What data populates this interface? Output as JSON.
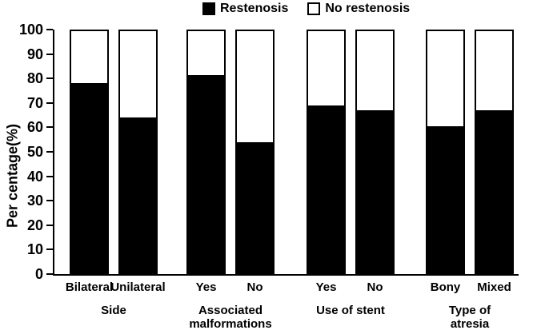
{
  "chart_data": {
    "type": "bar",
    "stacked": true,
    "title": "",
    "xlabel": "",
    "ylabel": "Per centage(%)",
    "ylim": [
      0,
      100
    ],
    "yticks": [
      0,
      10,
      20,
      30,
      40,
      50,
      60,
      70,
      80,
      90,
      100
    ],
    "grid": false,
    "legend_position": "top-center",
    "categories": [
      "Bilateral",
      "Unilateral",
      "Yes",
      "No",
      "Yes",
      "No",
      "Bony",
      "Mixed"
    ],
    "groups": [
      {
        "label": "Side",
        "categories": [
          "Bilateral",
          "Unilateral"
        ]
      },
      {
        "label": "Associated\nmalformations",
        "categories": [
          "Yes",
          "No"
        ]
      },
      {
        "label": "Use of stent",
        "categories": [
          "Yes",
          "No"
        ]
      },
      {
        "label": "Type of atresia",
        "categories": [
          "Bony",
          "Mixed"
        ]
      }
    ],
    "series": [
      {
        "name": "Restenosis",
        "color": "#000000",
        "values": [
          78,
          64,
          81.5,
          54,
          69,
          67,
          60.5,
          67
        ]
      },
      {
        "name": "No restenosis",
        "color": "#ffffff",
        "values": [
          22,
          36,
          18.5,
          46,
          31,
          33,
          39.5,
          33
        ]
      }
    ]
  }
}
